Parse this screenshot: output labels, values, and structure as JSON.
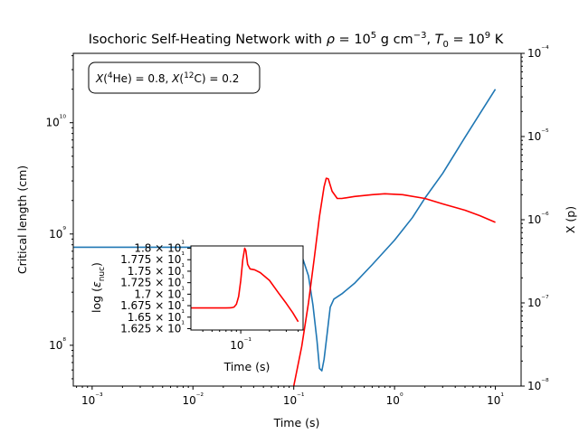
{
  "chart_data": [
    {
      "type": "line",
      "title": "Isochoric Self-Heating Network with ρ = 10⁵ g cm⁻³, T₀ = 10⁹ K",
      "annotation": "X(⁴He) = 0.8, X(¹²C) = 0.2",
      "xlabel": "Time (s)",
      "ylabel": "Critical length (cm)",
      "ylabel_right": "X (p)",
      "xscale": "log",
      "xlim": [
        0.00065,
        18
      ],
      "ylim": [
        43000000.0,
        42000000000.0
      ],
      "ylim_right": [
        1e-08,
        0.0001
      ],
      "xticks": [
        "10⁻³",
        "10⁻²",
        "10⁻¹",
        "10⁰",
        "10¹"
      ],
      "yticks": [
        "10⁸",
        "10⁹",
        "10¹⁰"
      ],
      "yticks_right": [
        "10⁻⁸",
        "10⁻⁷",
        "10⁻⁶",
        "10⁻⁵",
        "10⁻⁴"
      ],
      "grid": false,
      "series": [
        {
          "axis": "left",
          "color": "#1f77b4",
          "points": [
            [
              0.00065,
              760000000.0
            ],
            [
              0.001,
              760000000.0
            ],
            [
              0.01,
              760000000.0
            ],
            [
              0.05,
              760000000.0
            ],
            [
              0.08,
              755000000.0
            ],
            [
              0.1,
              740000000.0
            ],
            [
              0.12,
              640000000.0
            ],
            [
              0.14,
              420000000.0
            ],
            [
              0.155,
              230000000.0
            ],
            [
              0.17,
              110000000.0
            ],
            [
              0.18,
              62000000.0
            ],
            [
              0.19,
              59000000.0
            ],
            [
              0.2,
              75000000.0
            ],
            [
              0.215,
              130000000.0
            ],
            [
              0.23,
              220000000.0
            ],
            [
              0.25,
              260000000.0
            ],
            [
              0.3,
              290000000.0
            ],
            [
              0.4,
              360000000.0
            ],
            [
              0.6,
              530000000.0
            ],
            [
              1.0,
              880000000.0
            ],
            [
              1.5,
              1400000000.0
            ],
            [
              2.0,
              2100000000.0
            ],
            [
              3.0,
              3500000000.0
            ],
            [
              5.0,
              7400000000.0
            ],
            [
              7.0,
              12000000000.0
            ],
            [
              10.0,
              20000000000.0
            ]
          ]
        },
        {
          "axis": "right",
          "color": "#ff0000",
          "points": [
            [
              0.1,
              1e-08
            ],
            [
              0.12,
              3e-08
            ],
            [
              0.14,
              1e-07
            ],
            [
              0.16,
              3.5e-07
            ],
            [
              0.18,
              1.1e-06
            ],
            [
              0.2,
              2.5e-06
            ],
            [
              0.21,
              3.15e-06
            ],
            [
              0.22,
              3.1e-06
            ],
            [
              0.24,
              2.2e-06
            ],
            [
              0.27,
              1.8e-06
            ],
            [
              0.3,
              1.8e-06
            ],
            [
              0.4,
              1.9e-06
            ],
            [
              0.6,
              2e-06
            ],
            [
              0.8,
              2.05e-06
            ],
            [
              1.2,
              2e-06
            ],
            [
              2.0,
              1.8e-06
            ],
            [
              3.0,
              1.55e-06
            ],
            [
              5.0,
              1.3e-06
            ],
            [
              7.0,
              1.12e-06
            ],
            [
              10.0,
              9.3e-07
            ]
          ]
        }
      ]
    },
    {
      "type": "line",
      "title": "",
      "xlabel": "Time (s)",
      "ylabel": "log (ε_nuc)",
      "xscale": "log",
      "xlim": [
        0.03,
        0.45
      ],
      "ylim": [
        16.22,
        18.05
      ],
      "xticks": [
        "10⁻¹"
      ],
      "yticks": [
        "1.625 × 10¹",
        "1.65 × 10¹",
        "1.675 × 10¹",
        "1.7 × 10¹",
        "1.725 × 10¹",
        "1.75 × 10¹",
        "1.775 × 10¹",
        "1.8 × 10¹"
      ],
      "series": [
        {
          "color": "#ff0000",
          "points": [
            [
              0.03,
              16.7
            ],
            [
              0.05,
              16.7
            ],
            [
              0.07,
              16.7
            ],
            [
              0.08,
              16.705
            ],
            [
              0.085,
              16.72
            ],
            [
              0.09,
              16.78
            ],
            [
              0.095,
              16.95
            ],
            [
              0.1,
              17.3
            ],
            [
              0.105,
              17.75
            ],
            [
              0.11,
              18.0
            ],
            [
              0.113,
              17.95
            ],
            [
              0.118,
              17.65
            ],
            [
              0.125,
              17.55
            ],
            [
              0.14,
              17.53
            ],
            [
              0.16,
              17.47
            ],
            [
              0.2,
              17.3
            ],
            [
              0.25,
              17.02
            ],
            [
              0.3,
              16.8
            ],
            [
              0.35,
              16.6
            ],
            [
              0.4,
              16.4
            ]
          ]
        }
      ]
    }
  ]
}
